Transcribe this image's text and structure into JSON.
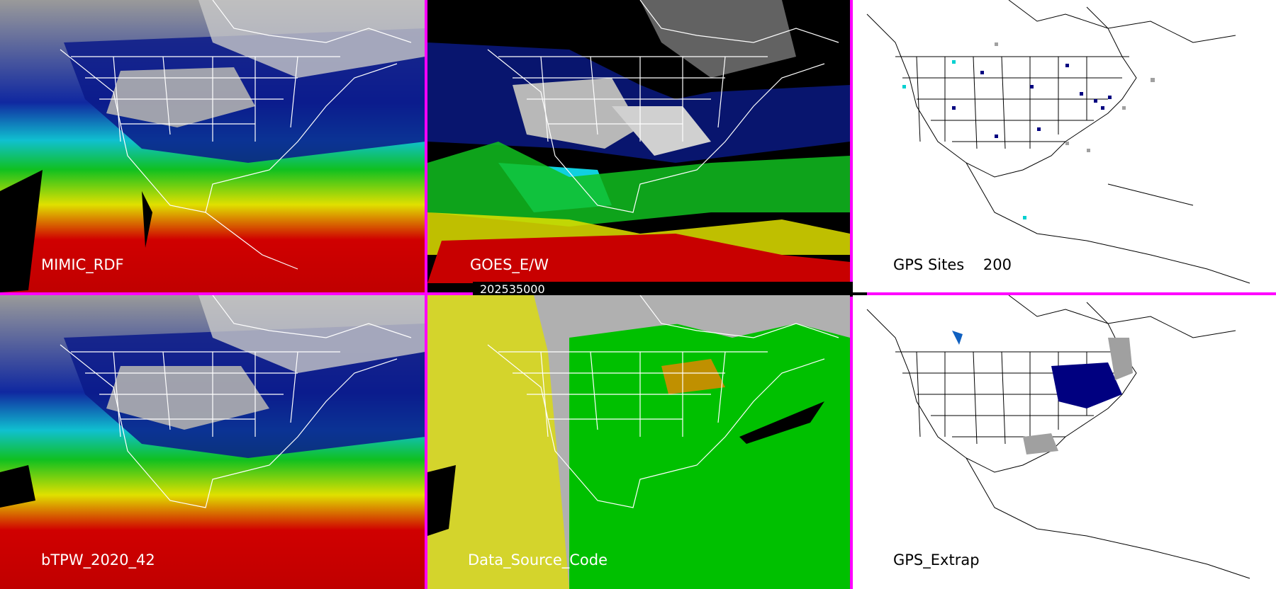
{
  "panels": [
    {
      "id": "p1",
      "label": "MIMIC_RDF"
    },
    {
      "id": "p2",
      "label": "GOES_E/W"
    },
    {
      "id": "p3",
      "label": "GPS Sites    200"
    },
    {
      "id": "p4",
      "label": "bTPW_2020_42"
    },
    {
      "id": "p5",
      "label": "Data_Source_Code"
    },
    {
      "id": "p6",
      "label": "GPS_Extrap"
    }
  ],
  "timestamp": "202535000",
  "colors": {
    "divider": "#ff00ff",
    "ocean_red": "#c80000",
    "yellow": "#e8e000",
    "green": "#00c000",
    "cyan": "#00e0e0",
    "blue": "#0000a0",
    "gray": "#a0a0a0",
    "source_gray": "#b0b0b0",
    "source_green": "#00c000",
    "source_yellow": "#e0e000"
  }
}
